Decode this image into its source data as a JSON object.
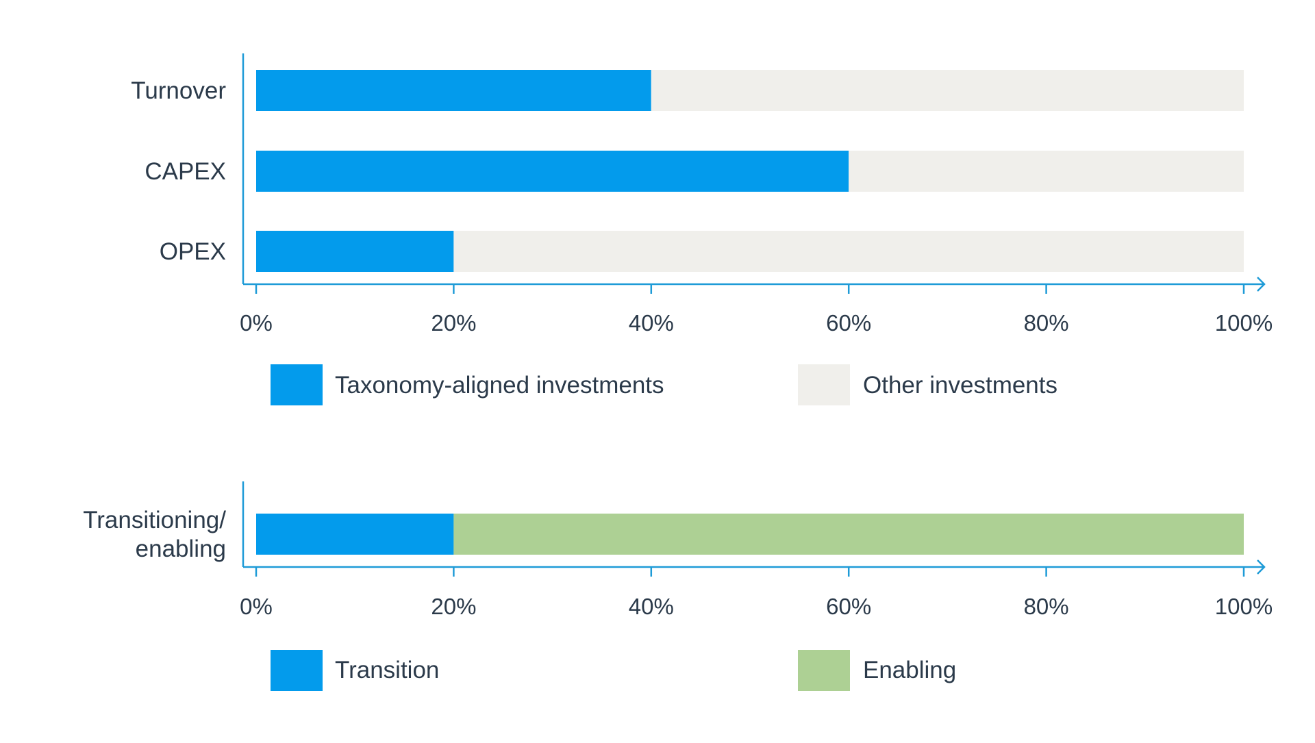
{
  "chart_data": [
    {
      "type": "bar",
      "orientation": "horizontal",
      "stacked": true,
      "categories": [
        "Turnover",
        "CAPEX",
        "OPEX"
      ],
      "series": [
        {
          "name": "Taxonomy-aligned investments",
          "values": [
            40,
            60,
            20
          ],
          "color": "#039BEC"
        },
        {
          "name": "Other investments",
          "values": [
            60,
            40,
            80
          ],
          "color": "#F0EFEB"
        }
      ],
      "xlim": [
        0,
        100
      ],
      "xticks": [
        "0%",
        "20%",
        "40%",
        "60%",
        "80%",
        "100%"
      ],
      "axis_color": "#1E9BD7",
      "grid": false,
      "legend_placement": "bottom"
    },
    {
      "type": "bar",
      "orientation": "horizontal",
      "stacked": true,
      "categories": [
        "Transitioning/\nenabling"
      ],
      "series": [
        {
          "name": "Transition",
          "values": [
            20
          ],
          "color": "#039BEC"
        },
        {
          "name": "Enabling",
          "values": [
            80
          ],
          "color": "#ADD094"
        }
      ],
      "xlim": [
        0,
        100
      ],
      "xticks": [
        "0%",
        "20%",
        "40%",
        "60%",
        "80%",
        "100%"
      ],
      "axis_color": "#1E9BD7",
      "grid": false,
      "legend_placement": "bottom"
    }
  ]
}
